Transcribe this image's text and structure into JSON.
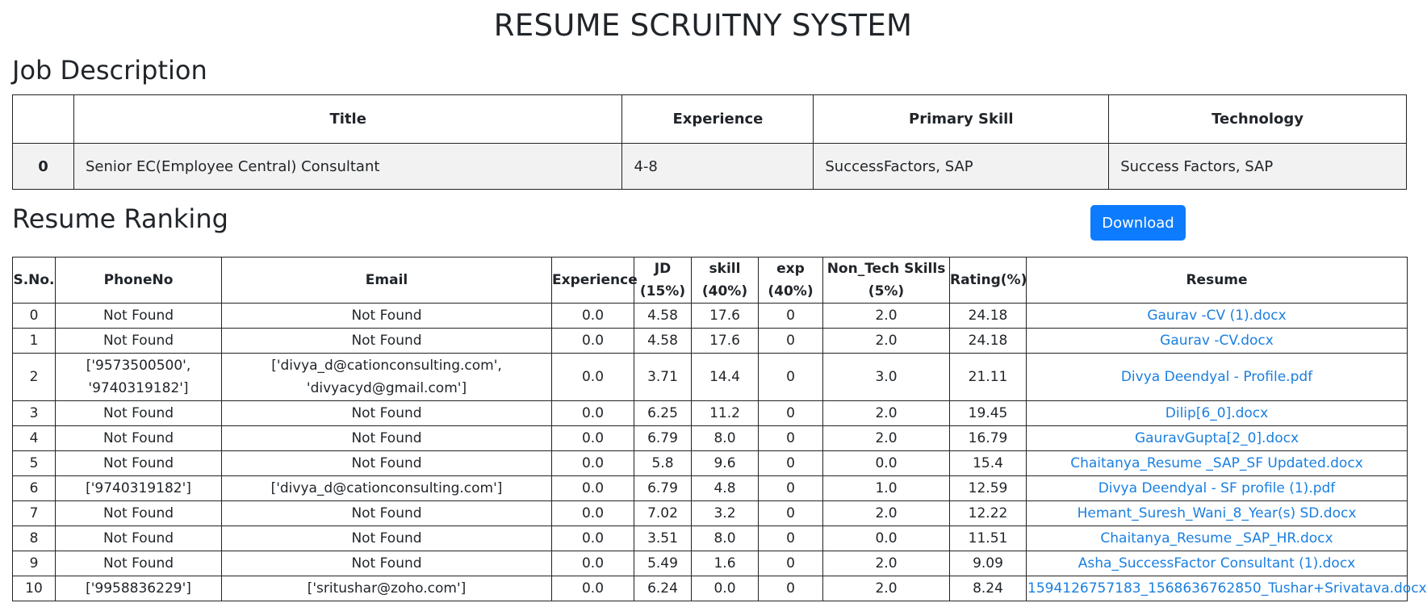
{
  "page": {
    "title": "RESUME SCRUITNY SYSTEM",
    "jd_heading": "Job Description",
    "ranking_heading": "Resume Ranking",
    "download_label": "Download"
  },
  "job_description": {
    "headers": [
      "",
      "Title",
      "Experience",
      "Primary Skill",
      "Technology"
    ],
    "row": {
      "index": "0",
      "title": "Senior EC(Employee Central) Consultant",
      "experience": "4-8",
      "primary_skill": "SuccessFactors, SAP",
      "technology": "Success Factors, SAP"
    }
  },
  "ranking": {
    "headers": [
      "S.No.",
      "PhoneNo",
      "Email",
      "Experience",
      "JD (15%)",
      "skill (40%)",
      "exp (40%)",
      "Non_Tech Skills (5%)",
      "Rating(%)",
      "Resume"
    ],
    "rows": [
      {
        "sno": "0",
        "phone": "Not Found",
        "email": "Not Found",
        "experience": "0.0",
        "jd": "4.58",
        "skill": "17.6",
        "exp": "0",
        "nontech": "2.0",
        "rating": "24.18",
        "resume": "Gaurav -CV (1).docx"
      },
      {
        "sno": "1",
        "phone": "Not Found",
        "email": "Not Found",
        "experience": "0.0",
        "jd": "4.58",
        "skill": "17.6",
        "exp": "0",
        "nontech": "2.0",
        "rating": "24.18",
        "resume": "Gaurav -CV.docx"
      },
      {
        "sno": "2",
        "phone": "['9573500500', '9740319182']",
        "email": "['divya_d@cationconsulting.com', 'divyacyd@gmail.com']",
        "experience": "0.0",
        "jd": "3.71",
        "skill": "14.4",
        "exp": "0",
        "nontech": "3.0",
        "rating": "21.11",
        "resume": "Divya Deendyal - Profile.pdf"
      },
      {
        "sno": "3",
        "phone": "Not Found",
        "email": "Not Found",
        "experience": "0.0",
        "jd": "6.25",
        "skill": "11.2",
        "exp": "0",
        "nontech": "2.0",
        "rating": "19.45",
        "resume": "Dilip[6_0].docx"
      },
      {
        "sno": "4",
        "phone": "Not Found",
        "email": "Not Found",
        "experience": "0.0",
        "jd": "6.79",
        "skill": "8.0",
        "exp": "0",
        "nontech": "2.0",
        "rating": "16.79",
        "resume": "GauravGupta[2_0].docx"
      },
      {
        "sno": "5",
        "phone": "Not Found",
        "email": "Not Found",
        "experience": "0.0",
        "jd": "5.8",
        "skill": "9.6",
        "exp": "0",
        "nontech": "0.0",
        "rating": "15.4",
        "resume": "Chaitanya_Resume _SAP_SF Updated.docx"
      },
      {
        "sno": "6",
        "phone": "['9740319182']",
        "email": "['divya_d@cationconsulting.com']",
        "experience": "0.0",
        "jd": "6.79",
        "skill": "4.8",
        "exp": "0",
        "nontech": "1.0",
        "rating": "12.59",
        "resume": "Divya Deendyal - SF profile (1).pdf"
      },
      {
        "sno": "7",
        "phone": "Not Found",
        "email": "Not Found",
        "experience": "0.0",
        "jd": "7.02",
        "skill": "3.2",
        "exp": "0",
        "nontech": "2.0",
        "rating": "12.22",
        "resume": "Hemant_Suresh_Wani_8_Year(s) SD.docx"
      },
      {
        "sno": "8",
        "phone": "Not Found",
        "email": "Not Found",
        "experience": "0.0",
        "jd": "3.51",
        "skill": "8.0",
        "exp": "0",
        "nontech": "0.0",
        "rating": "11.51",
        "resume": "Chaitanya_Resume _SAP_HR.docx"
      },
      {
        "sno": "9",
        "phone": "Not Found",
        "email": "Not Found",
        "experience": "0.0",
        "jd": "5.49",
        "skill": "1.6",
        "exp": "0",
        "nontech": "2.0",
        "rating": "9.09",
        "resume": "Asha_SuccessFactor Consultant (1).docx"
      },
      {
        "sno": "10",
        "phone": "['9958836229']",
        "email": "['sritushar@zoho.com']",
        "experience": "0.0",
        "jd": "6.24",
        "skill": "0.0",
        "exp": "0",
        "nontech": "2.0",
        "rating": "8.24",
        "resume": "1594126757183_1568636762850_Tushar+Srivatava.docx"
      }
    ]
  }
}
